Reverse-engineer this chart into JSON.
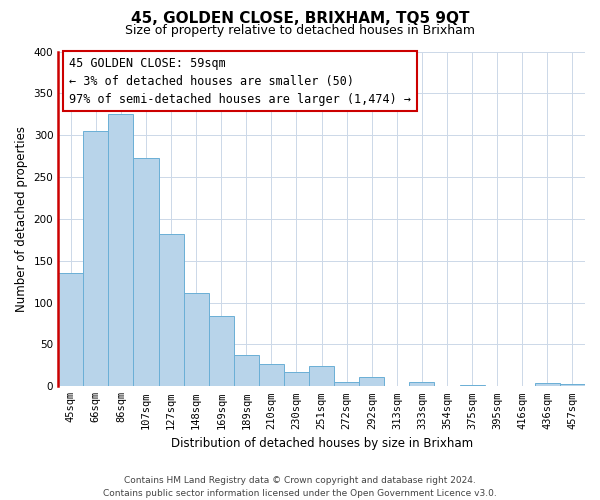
{
  "title": "45, GOLDEN CLOSE, BRIXHAM, TQ5 9QT",
  "subtitle": "Size of property relative to detached houses in Brixham",
  "xlabel": "Distribution of detached houses by size in Brixham",
  "ylabel": "Number of detached properties",
  "footer_line1": "Contains HM Land Registry data © Crown copyright and database right 2024.",
  "footer_line2": "Contains public sector information licensed under the Open Government Licence v3.0.",
  "bar_labels": [
    "45sqm",
    "66sqm",
    "86sqm",
    "107sqm",
    "127sqm",
    "148sqm",
    "169sqm",
    "189sqm",
    "210sqm",
    "230sqm",
    "251sqm",
    "272sqm",
    "292sqm",
    "313sqm",
    "333sqm",
    "354sqm",
    "375sqm",
    "395sqm",
    "416sqm",
    "436sqm",
    "457sqm"
  ],
  "bar_values": [
    135,
    305,
    325,
    273,
    182,
    112,
    84,
    37,
    27,
    17,
    24,
    5,
    11,
    0,
    5,
    0,
    2,
    0,
    0,
    4,
    3
  ],
  "bar_color": "#b8d4ea",
  "bar_edge_color": "#6aafd6",
  "annotation_box_text_line1": "45 GOLDEN CLOSE: 59sqm",
  "annotation_box_text_line2": "← 3% of detached houses are smaller (50)",
  "annotation_box_text_line3": "97% of semi-detached houses are larger (1,474) →",
  "annotation_box_edge_color": "#cc0000",
  "vertical_line_color": "#cc0000",
  "ylim": [
    0,
    400
  ],
  "yticks": [
    0,
    50,
    100,
    150,
    200,
    250,
    300,
    350,
    400
  ],
  "background_color": "#ffffff",
  "grid_color": "#ccd8e8",
  "title_fontsize": 11,
  "subtitle_fontsize": 9,
  "axis_label_fontsize": 8.5,
  "tick_fontsize": 7.5,
  "annotation_fontsize": 8.5,
  "footer_fontsize": 6.5
}
